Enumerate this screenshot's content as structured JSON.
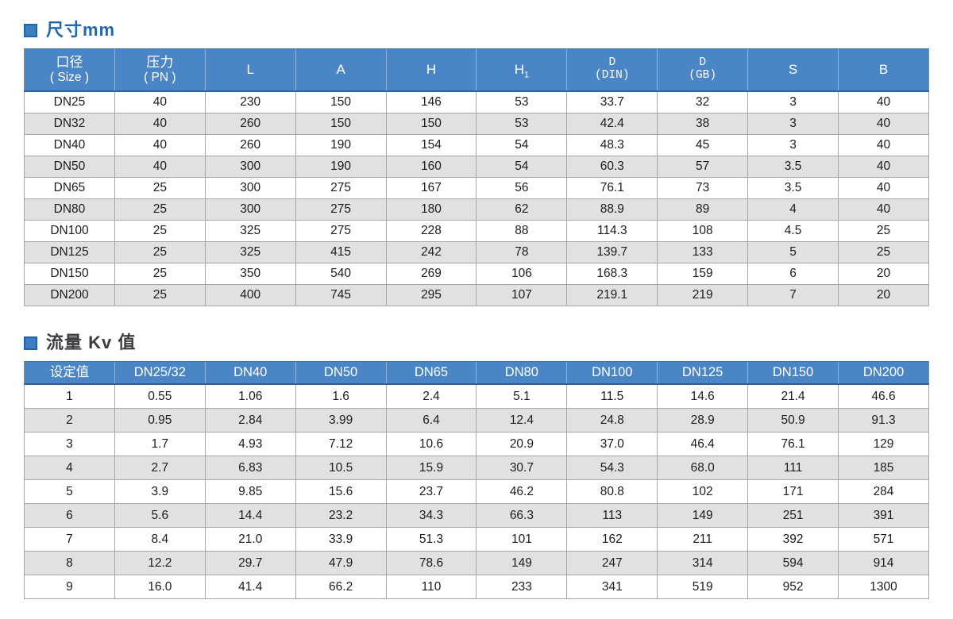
{
  "colors": {
    "header_blue": "#4a86c6",
    "header_divider": "#8fb3dd",
    "header_bottom_border": "#2d5f9e",
    "row_alt_gray": "#e1e1e1",
    "grid_gray": "#a6a6a6",
    "title1_text": "#2268b0",
    "title2_text": "#3d3d41",
    "marker_fill": "#3e7ec0",
    "marker_border": "#2163aa"
  },
  "sections": [
    {
      "title": "尺寸mm",
      "columns": [
        {
          "l1": "口径",
          "l2": "( Size )"
        },
        {
          "l1": "压力",
          "l2": "( PN )"
        },
        {
          "l1": "L"
        },
        {
          "l1": "A"
        },
        {
          "l1": "H"
        },
        {
          "l1": "H",
          "sub": "1"
        },
        {
          "l1": "D",
          "l2": "(DIN)",
          "serif": true
        },
        {
          "l1": "D",
          "l2": "(GB)",
          "serif": true
        },
        {
          "l1": "S"
        },
        {
          "l1": "B"
        }
      ],
      "rows": [
        [
          "DN25",
          "40",
          "230",
          "150",
          "146",
          "53",
          "33.7",
          "32",
          "3",
          "40"
        ],
        [
          "DN32",
          "40",
          "260",
          "150",
          "150",
          "53",
          "42.4",
          "38",
          "3",
          "40"
        ],
        [
          "DN40",
          "40",
          "260",
          "190",
          "154",
          "54",
          "48.3",
          "45",
          "3",
          "40"
        ],
        [
          "DN50",
          "40",
          "300",
          "190",
          "160",
          "54",
          "60.3",
          "57",
          "3.5",
          "40"
        ],
        [
          "DN65",
          "25",
          "300",
          "275",
          "167",
          "56",
          "76.1",
          "73",
          "3.5",
          "40"
        ],
        [
          "DN80",
          "25",
          "300",
          "275",
          "180",
          "62",
          "88.9",
          "89",
          "4",
          "40"
        ],
        [
          "DN100",
          "25",
          "325",
          "275",
          "228",
          "88",
          "114.3",
          "108",
          "4.5",
          "25"
        ],
        [
          "DN125",
          "25",
          "325",
          "415",
          "242",
          "78",
          "139.7",
          "133",
          "5",
          "25"
        ],
        [
          "DN150",
          "25",
          "350",
          "540",
          "269",
          "106",
          "168.3",
          "159",
          "6",
          "20"
        ],
        [
          "DN200",
          "25",
          "400",
          "745",
          "295",
          "107",
          "219.1",
          "219",
          "7",
          "20"
        ]
      ]
    },
    {
      "title": "流量 Kv 值",
      "columns": [
        {
          "l1": "设定值"
        },
        {
          "l1": "DN25/32"
        },
        {
          "l1": "DN40"
        },
        {
          "l1": "DN50"
        },
        {
          "l1": "DN65"
        },
        {
          "l1": "DN80"
        },
        {
          "l1": "DN100"
        },
        {
          "l1": "DN125"
        },
        {
          "l1": "DN150"
        },
        {
          "l1": "DN200"
        }
      ],
      "rows": [
        [
          "1",
          "0.55",
          "1.06",
          "1.6",
          "2.4",
          "5.1",
          "11.5",
          "14.6",
          "21.4",
          "46.6"
        ],
        [
          "2",
          "0.95",
          "2.84",
          "3.99",
          "6.4",
          "12.4",
          "24.8",
          "28.9",
          "50.9",
          "91.3"
        ],
        [
          "3",
          "1.7",
          "4.93",
          "7.12",
          "10.6",
          "20.9",
          "37.0",
          "46.4",
          "76.1",
          "129"
        ],
        [
          "4",
          "2.7",
          "6.83",
          "10.5",
          "15.9",
          "30.7",
          "54.3",
          "68.0",
          "111",
          "185"
        ],
        [
          "5",
          "3.9",
          "9.85",
          "15.6",
          "23.7",
          "46.2",
          "80.8",
          "102",
          "171",
          "284"
        ],
        [
          "6",
          "5.6",
          "14.4",
          "23.2",
          "34.3",
          "66.3",
          "113",
          "149",
          "251",
          "391"
        ],
        [
          "7",
          "8.4",
          "21.0",
          "33.9",
          "51.3",
          "101",
          "162",
          "211",
          "392",
          "571"
        ],
        [
          "8",
          "12.2",
          "29.7",
          "47.9",
          "78.6",
          "149",
          "247",
          "314",
          "594",
          "914"
        ],
        [
          "9",
          "16.0",
          "41.4",
          "66.2",
          "110",
          "233",
          "341",
          "519",
          "952",
          "1300"
        ]
      ]
    }
  ]
}
